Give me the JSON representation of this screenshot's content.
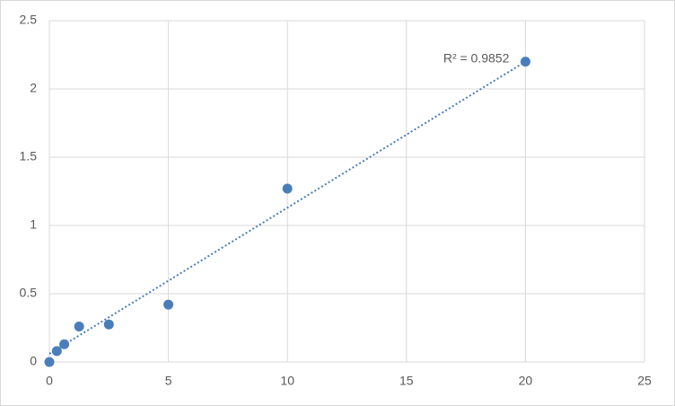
{
  "chart_data": {
    "type": "scatter",
    "x": [
      0,
      0.3125,
      0.625,
      1.25,
      2.5,
      5,
      10,
      20
    ],
    "series": [
      {
        "color": "#4a7ebb",
        "values": [
          0,
          0.08,
          0.13,
          0.26,
          0.275,
          0.42,
          1.27,
          2.2
        ]
      }
    ],
    "trendline": {
      "x": [
        0,
        20
      ],
      "y": [
        0.06,
        2.2
      ],
      "color": "#4a7ebb",
      "label": "R² = 0.9852"
    },
    "xlim": [
      0,
      25
    ],
    "xticks": [
      0,
      5,
      10,
      15,
      20,
      25
    ],
    "ylim": [
      0,
      2.5
    ],
    "yticks": [
      0,
      0.5,
      1,
      1.5,
      2,
      2.5
    ],
    "grid": true
  }
}
